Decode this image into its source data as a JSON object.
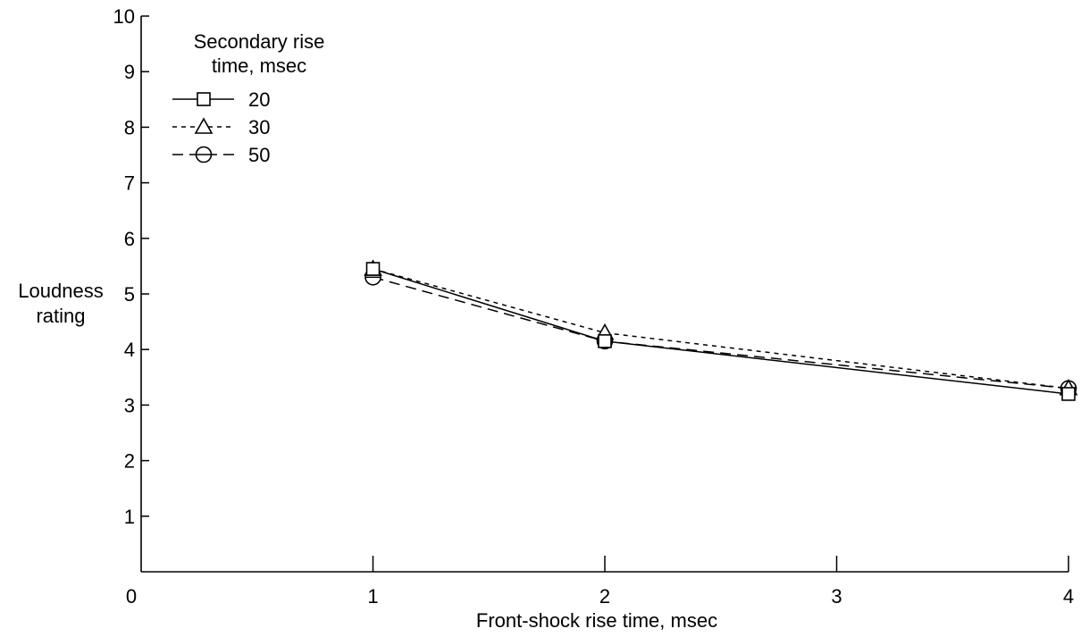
{
  "chart_data": {
    "type": "line",
    "xlabel": "Front-shock rise time, msec",
    "ylabel": [
      "Loudness",
      "rating"
    ],
    "xlim": [
      0,
      4
    ],
    "ylim": [
      0,
      10
    ],
    "x_ticks": [
      "0",
      "1",
      "2",
      "3",
      "4"
    ],
    "y_ticks": [
      "1",
      "2",
      "3",
      "4",
      "5",
      "6",
      "7",
      "8",
      "9",
      "10"
    ],
    "grid": false,
    "legend": {
      "title": [
        "Secondary rise",
        "time, msec"
      ],
      "position": "top-left"
    },
    "x": [
      1,
      2,
      4
    ],
    "series": [
      {
        "name": "20",
        "marker": "square",
        "line": "solid",
        "values": [
          5.45,
          4.15,
          3.2
        ]
      },
      {
        "name": "30",
        "marker": "triangle",
        "line": "short-dash",
        "values": [
          5.45,
          4.3,
          3.3
        ]
      },
      {
        "name": "50",
        "marker": "circle-bar",
        "line": "long-dash",
        "values": [
          5.3,
          4.15,
          3.3
        ]
      }
    ]
  }
}
